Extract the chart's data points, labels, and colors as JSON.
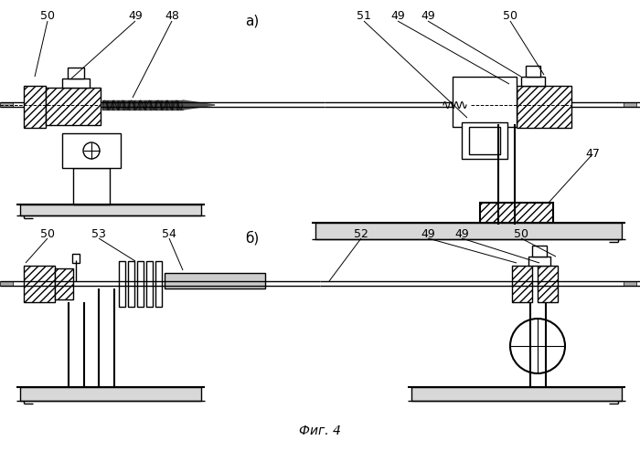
{
  "title": "Фиг. 4",
  "label_a": "а)",
  "label_b": "б)",
  "bg_color": "#ffffff",
  "lc": "#000000",
  "fig_width": 7.0,
  "fig_height": 4.94,
  "dpi": 100
}
